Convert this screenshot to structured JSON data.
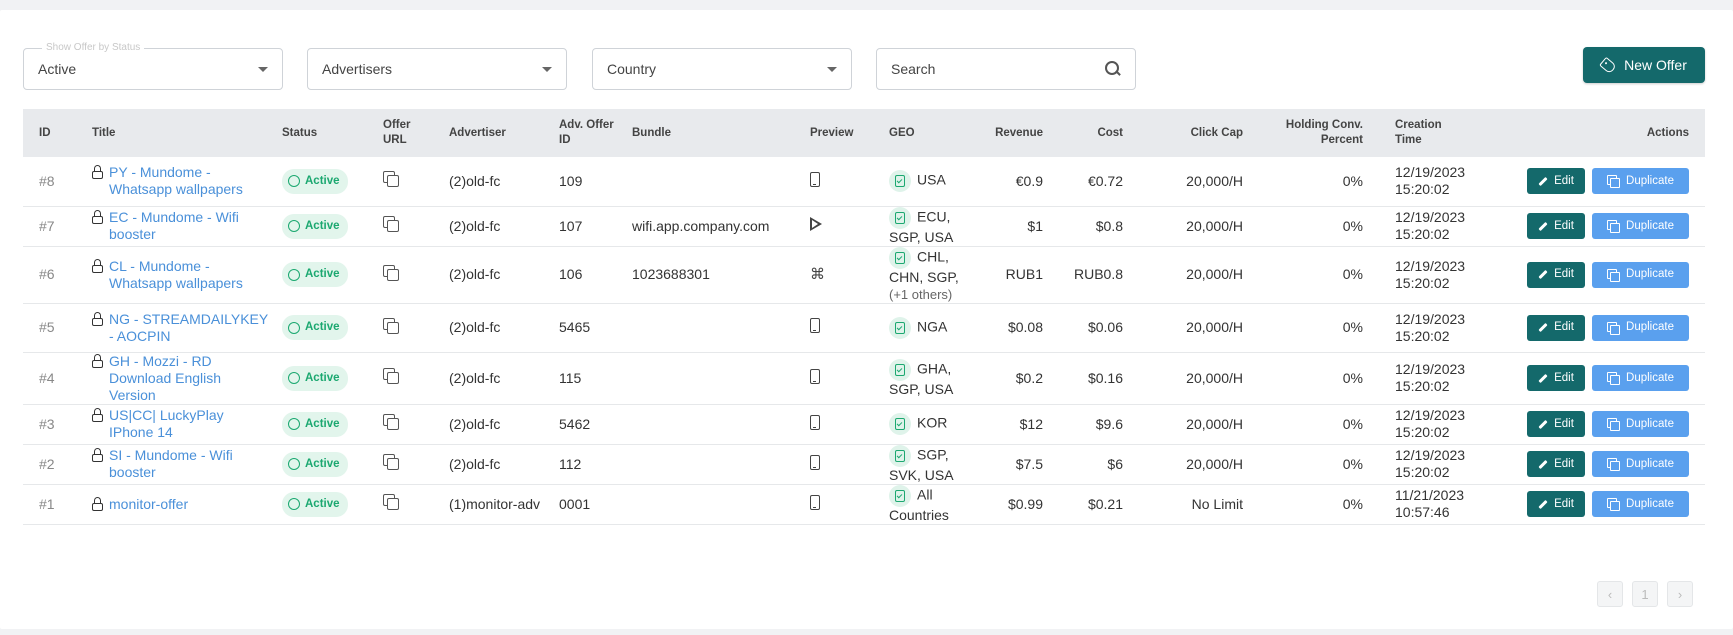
{
  "filters": {
    "status": {
      "legend": "Show Offer by Status",
      "value": "Active"
    },
    "advertisers": {
      "value": "Advertisers"
    },
    "country": {
      "value": "Country"
    },
    "search": {
      "placeholder": "Search"
    }
  },
  "new_offer_label": "New Offer",
  "columns": {
    "id": "ID",
    "title": "Title",
    "status": "Status",
    "offer_url": "Offer URL",
    "advertiser": "Advertiser",
    "adv_offer_id": "Adv. Offer ID",
    "bundle": "Bundle",
    "preview": "Preview",
    "geo": "GEO",
    "revenue": "Revenue",
    "cost": "Cost",
    "click_cap": "Click Cap",
    "holding": "Holding Conv. Percent",
    "creation_time": "Creation Time",
    "actions": "Actions"
  },
  "edit_label": "Edit",
  "duplicate_label": "Duplicate",
  "rows": [
    {
      "id": "#8",
      "title": "PY - Mundome - Whatsapp wallpapers",
      "status": "Active",
      "advertiser": "(2)old-fc",
      "adv_offer_id": "109",
      "bundle": "",
      "preview": "phone",
      "geo": "USA",
      "geo_more": "",
      "revenue": "€0.9",
      "cost": "€0.72",
      "click_cap": "20,000/H",
      "holding": "0%",
      "date": "12/19/2023",
      "time": "15:20:02"
    },
    {
      "id": "#7",
      "title": "EC - Mundome - Wifi booster",
      "status": "Active",
      "advertiser": "(2)old-fc",
      "adv_offer_id": "107",
      "bundle": "wifi.app.company.com",
      "preview": "play",
      "geo": "ECU, SGP, USA",
      "geo_more": "",
      "revenue": "$1",
      "cost": "$0.8",
      "click_cap": "20,000/H",
      "holding": "0%",
      "date": "12/19/2023",
      "time": "15:20:02"
    },
    {
      "id": "#6",
      "title": "CL - Mundome - Whatsapp wallpapers",
      "status": "Active",
      "advertiser": "(2)old-fc",
      "adv_offer_id": "106",
      "bundle": "1023688301",
      "preview": "apple",
      "geo": "CHL, CHN, SGP,",
      "geo_more": "(+1 others)",
      "revenue": "RUB1",
      "cost": "RUB0.8",
      "click_cap": "20,000/H",
      "holding": "0%",
      "date": "12/19/2023",
      "time": "15:20:02"
    },
    {
      "id": "#5",
      "title": "NG - STREAMDAILYKEY - AOCPIN",
      "status": "Active",
      "advertiser": "(2)old-fc",
      "adv_offer_id": "5465",
      "bundle": "",
      "preview": "phone",
      "geo": "NGA",
      "geo_more": "",
      "revenue": "$0.08",
      "cost": "$0.06",
      "click_cap": "20,000/H",
      "holding": "0%",
      "date": "12/19/2023",
      "time": "15:20:02"
    },
    {
      "id": "#4",
      "title": "GH - Mozzi - RD Download English Version",
      "status": "Active",
      "advertiser": "(2)old-fc",
      "adv_offer_id": "115",
      "bundle": "",
      "preview": "phone",
      "geo": "GHA, SGP, USA",
      "geo_more": "",
      "revenue": "$0.2",
      "cost": "$0.16",
      "click_cap": "20,000/H",
      "holding": "0%",
      "date": "12/19/2023",
      "time": "15:20:02"
    },
    {
      "id": "#3",
      "title": "US|CC| LuckyPlay IPhone 14",
      "status": "Active",
      "advertiser": "(2)old-fc",
      "adv_offer_id": "5462",
      "bundle": "",
      "preview": "phone",
      "geo": "KOR",
      "geo_more": "",
      "revenue": "$12",
      "cost": "$9.6",
      "click_cap": "20,000/H",
      "holding": "0%",
      "date": "12/19/2023",
      "time": "15:20:02"
    },
    {
      "id": "#2",
      "title": "SI - Mundome - Wifi booster",
      "status": "Active",
      "advertiser": "(2)old-fc",
      "adv_offer_id": "112",
      "bundle": "",
      "preview": "phone",
      "geo": "SGP, SVK, USA",
      "geo_more": "",
      "revenue": "$7.5",
      "cost": "$6",
      "click_cap": "20,000/H",
      "holding": "0%",
      "date": "12/19/2023",
      "time": "15:20:02"
    },
    {
      "id": "#1",
      "title": "monitor-offer",
      "status": "Active",
      "advertiser": "(1)monitor-adv",
      "adv_offer_id": "0001",
      "bundle": "",
      "preview": "phone",
      "geo": "All Countries",
      "geo_more": "",
      "revenue": "$0.99",
      "cost": "$0.21",
      "click_cap": "No Limit",
      "holding": "0%",
      "date": "11/21/2023",
      "time": "10:57:46"
    }
  ],
  "pagination": {
    "prev": "‹",
    "page": "1",
    "next": "›"
  }
}
